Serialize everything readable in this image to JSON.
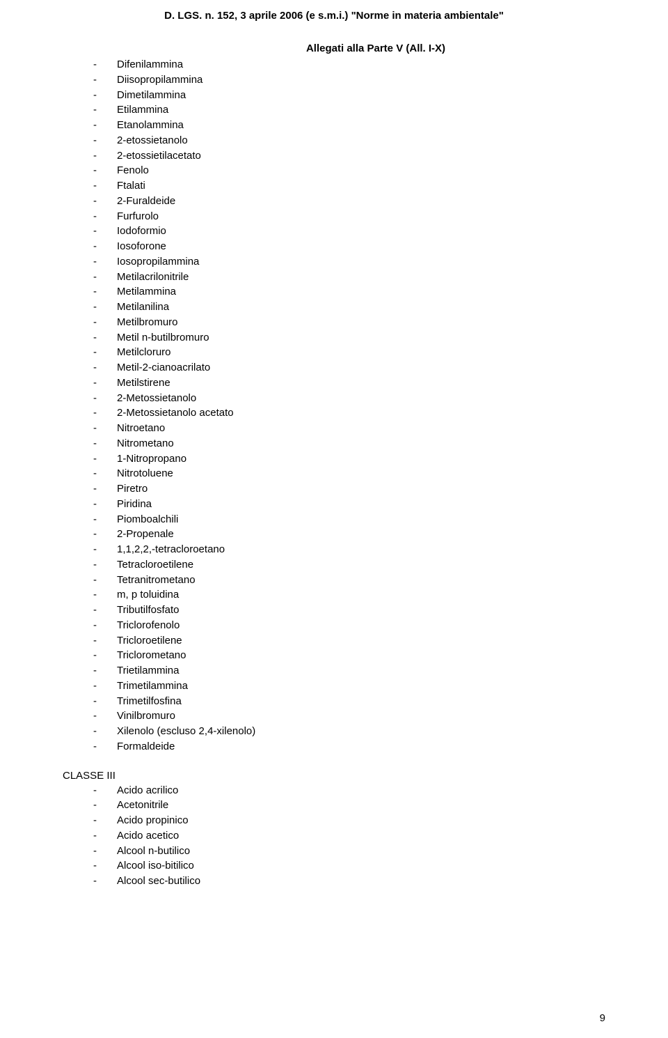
{
  "header": "D. LGS. n. 152, 3 aprile 2006 (e s.m.i.) \"Norme in materia ambientale\"",
  "attachment_line": "Allegati alla Parte V (All. I-X)",
  "main_list": [
    "Difenilammina",
    "Diisopropilammina",
    "Dimetilammina",
    "Etilammina",
    "Etanolammina",
    "2-etossietanolo",
    "2-etossietilacetato",
    "Fenolo",
    "Ftalati",
    "2-Furaldeide",
    "Furfurolo",
    "Iodoformio",
    "Iosoforone",
    "Iosopropilammina",
    "Metilacrilonitrile",
    "Metilammina",
    "Metilanilina",
    "Metilbromuro",
    "Metil n-butilbromuro",
    "Metilcloruro",
    "Metil-2-cianoacrilato",
    "Metilstirene",
    "2-Metossietanolo",
    "2-Metossietanolo acetato",
    "Nitroetano",
    "Nitrometano",
    "1-Nitropropano",
    "Nitrotoluene",
    "Piretro",
    "Piridina",
    "Piomboalchili",
    "2-Propenale",
    "1,1,2,2,-tetracloroetano",
    "Tetracloroetilene",
    "Tetranitrometano",
    "m, p toluidina",
    "Tributilfosfato",
    "Triclorofenolo",
    "Tricloroetilene",
    "Triclorometano",
    "Trietilammina",
    "Trimetilammina",
    "Trimetilfosfina",
    "Vinilbromuro",
    "Xilenolo (escluso 2,4-xilenolo)",
    "Formaldeide"
  ],
  "class3": {
    "heading": "CLASSE III",
    "items": [
      "Acido acrilico",
      "Acetonitrile",
      "Acido propinico",
      "Acido acetico",
      "Alcool n-butilico",
      "Alcool iso-bitilico",
      "Alcool sec-butilico"
    ]
  },
  "page_number": "9"
}
